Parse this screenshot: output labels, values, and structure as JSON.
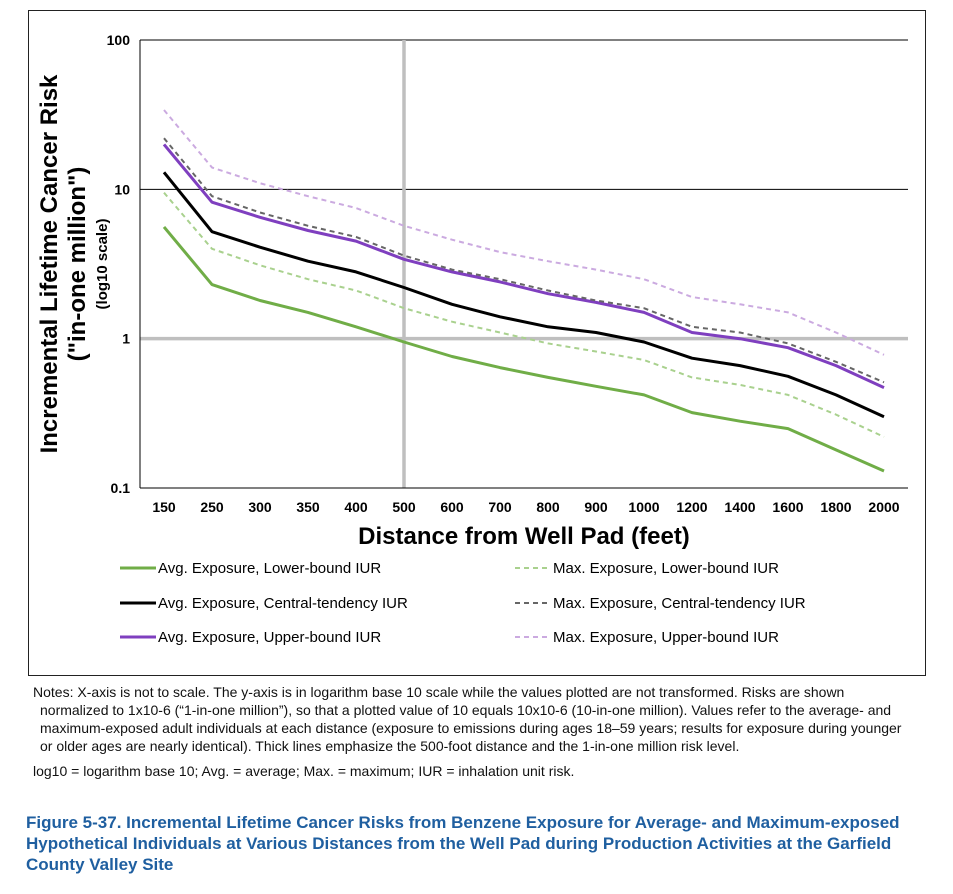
{
  "chart_data": {
    "type": "line",
    "title": "",
    "xlabel": "Distance from Well Pad (feet)",
    "ylabel": "Incremental Lifetime Cancer Risk (\"in-one million\")",
    "ylabel_sub": "(log10 scale)",
    "yscale": "log10",
    "ylim": [
      0.1,
      100
    ],
    "y_ticks": [
      "0.1",
      "1",
      "10",
      "100"
    ],
    "categories": [
      "150",
      "250",
      "300",
      "350",
      "400",
      "500",
      "600",
      "700",
      "800",
      "900",
      "1000",
      "1200",
      "1400",
      "1600",
      "1800",
      "2000"
    ],
    "reference_lines": {
      "x": "500",
      "y": 1
    },
    "legend_position": "bottom",
    "series": [
      {
        "name": "Avg. Exposure, Lower-bound IUR",
        "color": "#70ad47",
        "style": "solid-thick",
        "values": [
          5.6,
          2.3,
          1.8,
          1.5,
          1.2,
          0.95,
          0.76,
          0.64,
          0.55,
          0.48,
          0.42,
          0.32,
          0.28,
          0.25,
          0.18,
          0.13
        ]
      },
      {
        "name": "Avg. Exposure, Central-tendency IUR",
        "color": "#000000",
        "style": "solid-thick",
        "values": [
          13,
          5.2,
          4.1,
          3.3,
          2.8,
          2.2,
          1.7,
          1.4,
          1.2,
          1.1,
          0.95,
          0.74,
          0.66,
          0.56,
          0.42,
          0.3
        ]
      },
      {
        "name": "Avg. Exposure, Upper-bound IUR",
        "color": "#7f3fbf",
        "style": "solid-thick",
        "values": [
          20,
          8.2,
          6.5,
          5.3,
          4.5,
          3.4,
          2.8,
          2.4,
          2.0,
          1.75,
          1.5,
          1.1,
          1.0,
          0.87,
          0.66,
          0.47
        ]
      },
      {
        "name": "Max. Exposure, Lower-bound IUR",
        "color": "#a9d18e",
        "style": "dashed",
        "values": [
          9.5,
          4.0,
          3.1,
          2.5,
          2.1,
          1.6,
          1.3,
          1.1,
          0.93,
          0.82,
          0.72,
          0.55,
          0.49,
          0.42,
          0.31,
          0.22
        ]
      },
      {
        "name": "Max. Exposure, Central-tendency IUR",
        "color": "#666666",
        "style": "dashed",
        "values": [
          22,
          9.0,
          7.0,
          5.7,
          4.8,
          3.6,
          2.9,
          2.5,
          2.1,
          1.8,
          1.6,
          1.2,
          1.1,
          0.93,
          0.7,
          0.51
        ]
      },
      {
        "name": "Max. Exposure, Upper-bound IUR",
        "color": "#cbaae0",
        "style": "dashed",
        "values": [
          34,
          14,
          11,
          9.0,
          7.5,
          5.7,
          4.6,
          3.8,
          3.3,
          2.9,
          2.5,
          1.9,
          1.7,
          1.5,
          1.1,
          0.78
        ]
      }
    ]
  },
  "notes": {
    "main": "Notes: X-axis is not to scale. The y-axis is in logarithm base 10 scale while the values plotted are not transformed. Risks are shown normalized to 1x10-6 (“1-in-one million”), so that a plotted value of 10 equals 10x10-6 (10-in-one million). Values refer to the average- and maximum-exposed adult individuals at each distance (exposure to emissions during ages 18–59 years; results for exposure during younger or older ages are nearly identical). Thick lines emphasize the 500-foot distance and the 1-in-one million risk level.",
    "abbreviations": "log10 = logarithm base 10; Avg. = average; Max. = maximum; IUR = inhalation unit risk."
  },
  "caption": "Figure 5-37. Incremental Lifetime Cancer Risks from Benzene Exposure for Average- and Maximum-exposed Hypothetical Individuals at Various Distances from the Well Pad during Production Activities at the Garfield County Valley Site"
}
